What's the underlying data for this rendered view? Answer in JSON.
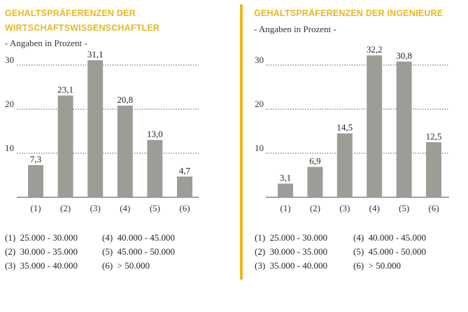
{
  "accent_color": "#e8b820",
  "bar_color": "#9d9d97",
  "panels": [
    {
      "title_line1": "GEHALTSPRÄFERENZEN DER",
      "title_line2": "WIRTSCHAFTSWISSENSCHAFTLER",
      "subtitle": "- Angaben in Prozent -",
      "legend": [
        {
          "key": "(1)",
          "range": "25.000 - 30.000"
        },
        {
          "key": "(2)",
          "range": "30.000 - 35.000"
        },
        {
          "key": "(3)",
          "range": "35.000 - 40.000"
        },
        {
          "key": "(4)",
          "range": "40.000 - 45.000"
        },
        {
          "key": "(5)",
          "range": "45.000 - 50.000"
        },
        {
          "key": "(6)",
          "range": "> 50.000"
        }
      ]
    },
    {
      "title_line1": "GEHALTSPRÄFERENZEN DER INGENIEURE",
      "title_line2": "",
      "subtitle": "- Angaben in Prozent -",
      "legend": [
        {
          "key": "(1)",
          "range": "25.000 - 30.000"
        },
        {
          "key": "(2)",
          "range": "30.000 - 35.000"
        },
        {
          "key": "(3)",
          "range": "35.000 - 40.000"
        },
        {
          "key": "(4)",
          "range": "40.000 - 45.000"
        },
        {
          "key": "(5)",
          "range": "45.000 - 50.000"
        },
        {
          "key": "(6)",
          "range": "> 50.000"
        }
      ]
    }
  ],
  "chart_data": [
    {
      "type": "bar",
      "title": "GEHALTSPRÄFERENZEN DER WIRTSCHAFTSWISSENSCHAFTLER",
      "subtitle": "- Angaben in Prozent -",
      "categories": [
        "(1)",
        "(2)",
        "(3)",
        "(4)",
        "(5)",
        "(6)"
      ],
      "values": [
        7.3,
        23.1,
        31.1,
        20.8,
        13.0,
        4.7
      ],
      "value_labels": [
        "7,3",
        "23,1",
        "31,1",
        "20,8",
        "13,0",
        "4,7"
      ],
      "yticks": [
        10,
        20,
        30
      ],
      "ylim": [
        0,
        32
      ],
      "grid": true,
      "xlabel": "",
      "ylabel": ""
    },
    {
      "type": "bar",
      "title": "GEHALTSPRÄFERENZEN DER INGENIEURE",
      "subtitle": "- Angaben in Prozent -",
      "categories": [
        "(1)",
        "(2)",
        "(3)",
        "(4)",
        "(5)",
        "(6)"
      ],
      "values": [
        3.1,
        6.9,
        14.5,
        32.2,
        30.8,
        12.5
      ],
      "value_labels": [
        "3,1",
        "6,9",
        "14,5",
        "32,2",
        "30,8",
        "12,5"
      ],
      "yticks": [
        10,
        20,
        30
      ],
      "ylim": [
        0,
        34
      ],
      "grid": true,
      "xlabel": "",
      "ylabel": ""
    }
  ]
}
